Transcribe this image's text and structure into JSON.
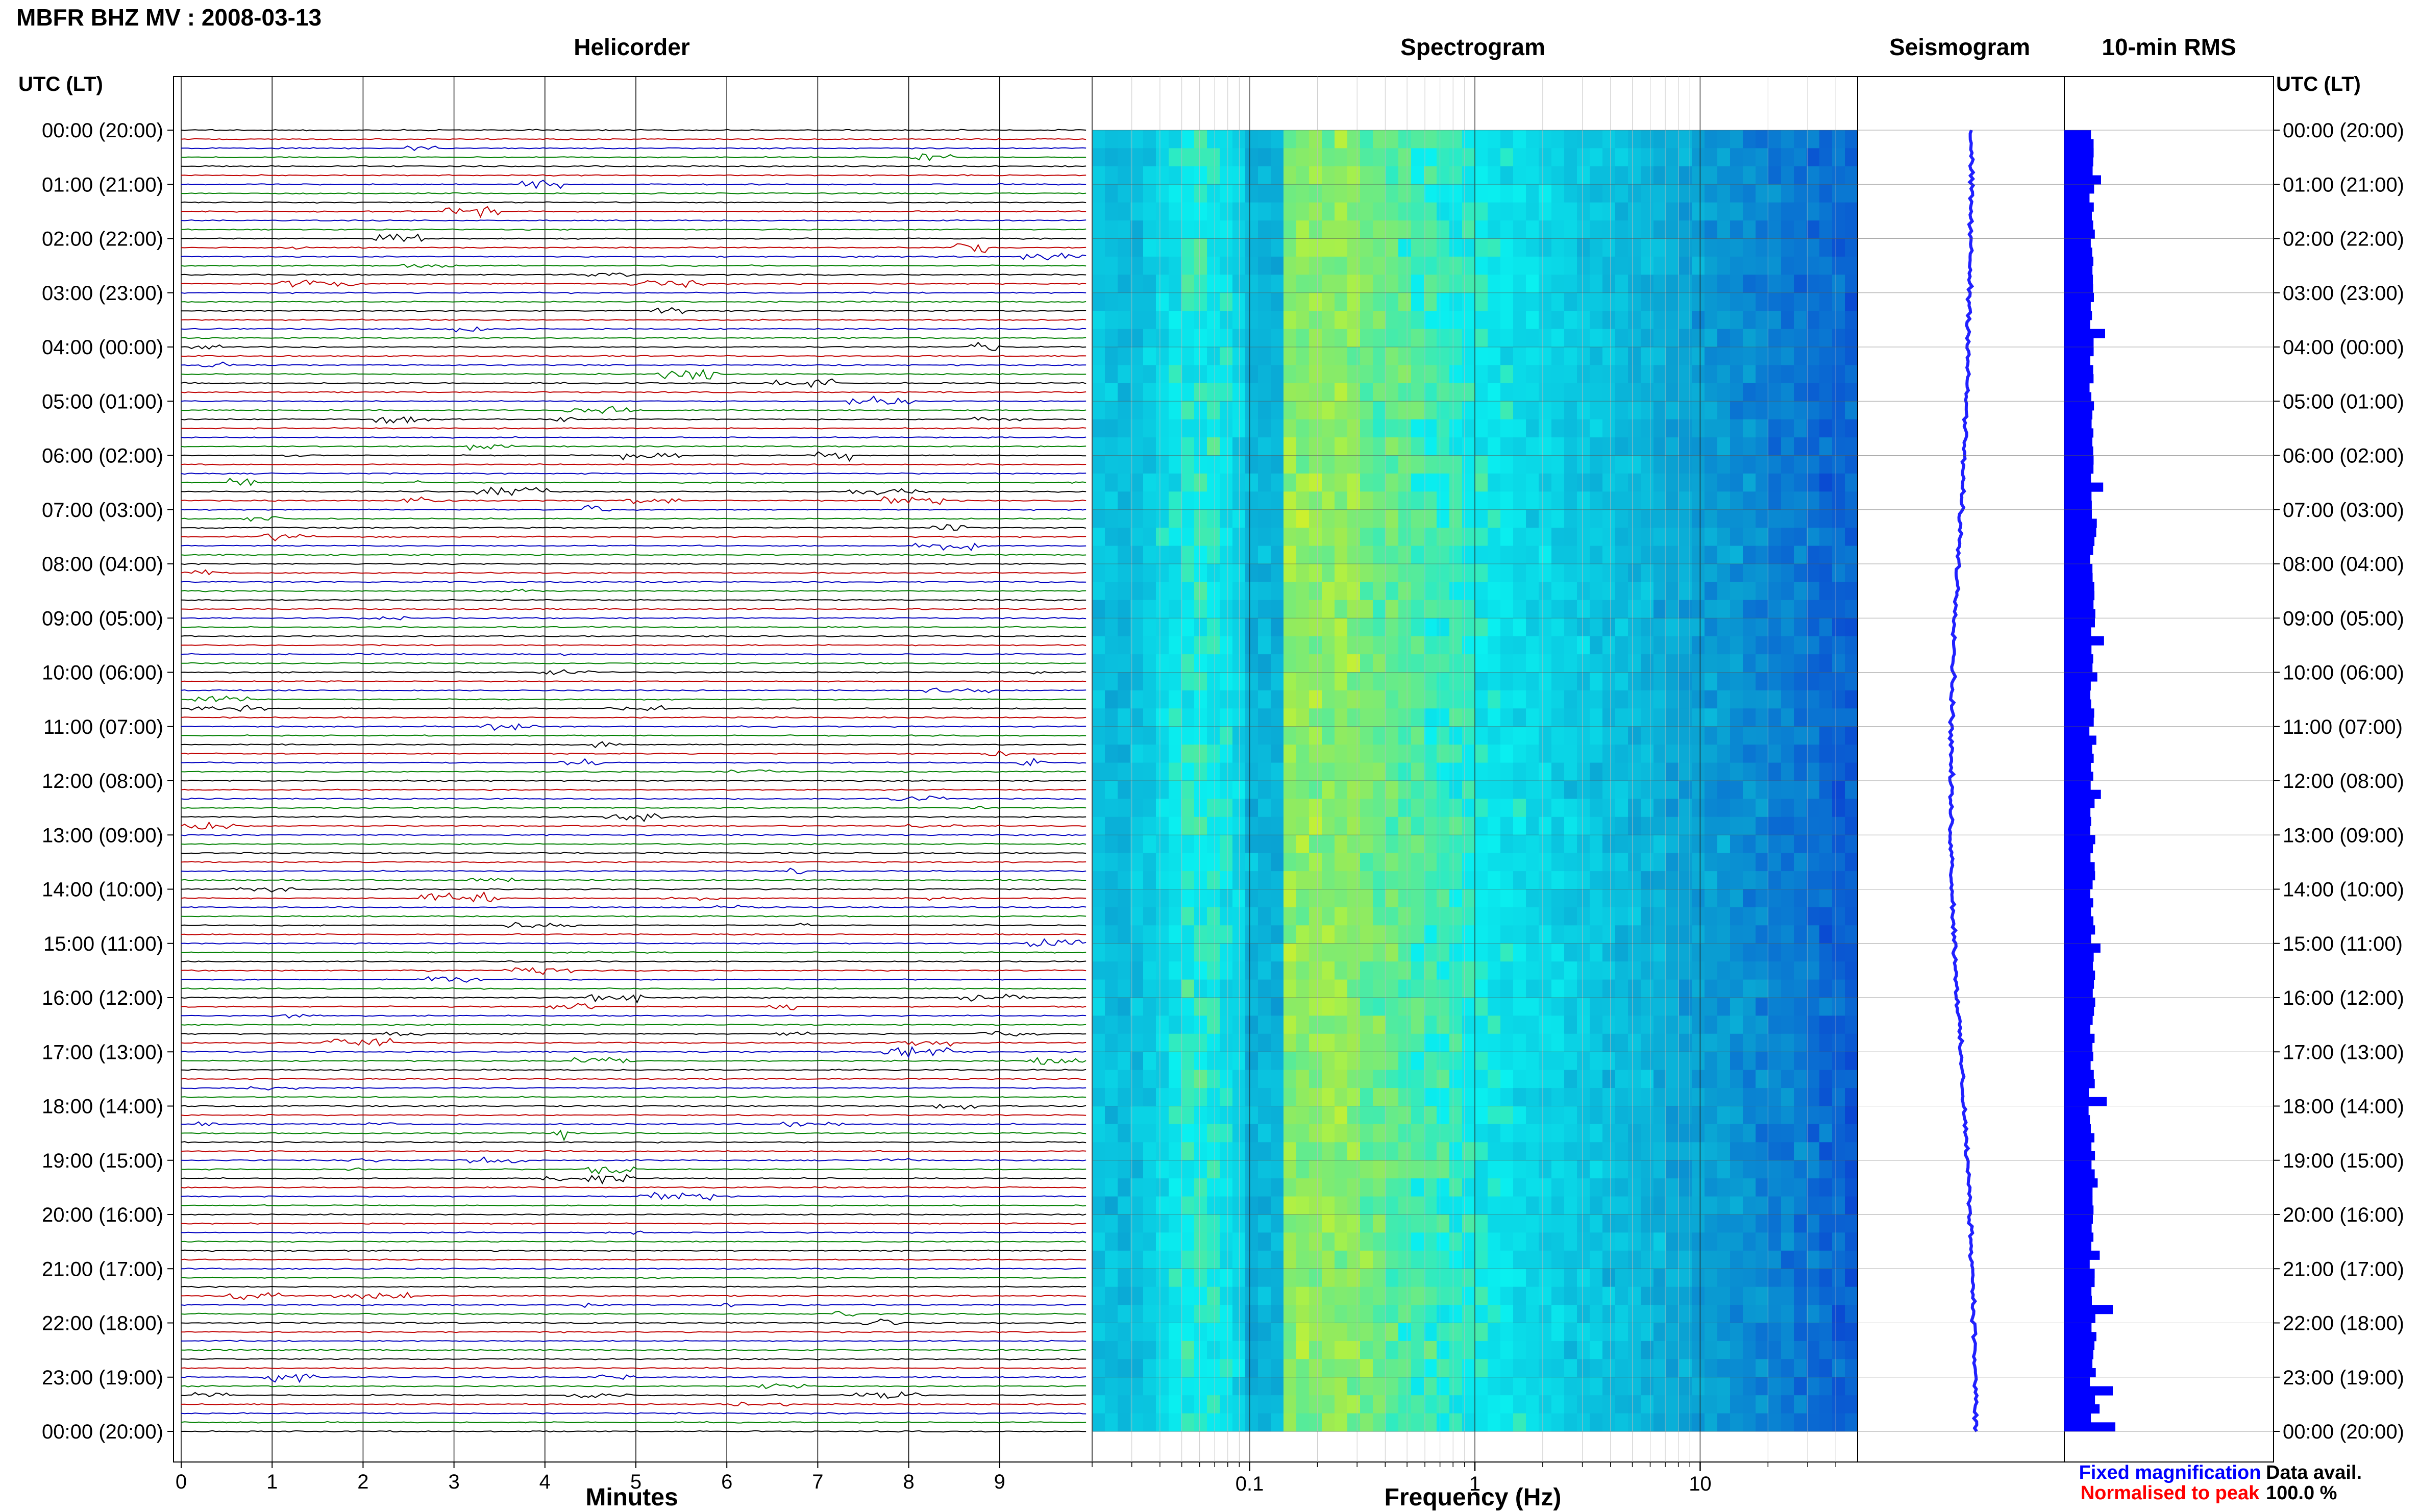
{
  "title": "MBFR BHZ MV : 2008-03-13",
  "time_axis_label": "UTC (LT)",
  "panels": {
    "helicorder": "Helicorder",
    "spectrogram": "Spectrogram",
    "seismogram": "Seismogram",
    "rms": "10-min RMS"
  },
  "time_ticks": [
    "00:00 (20:00)",
    "01:00 (21:00)",
    "02:00 (22:00)",
    "03:00 (23:00)",
    "04:00 (00:00)",
    "05:00 (01:00)",
    "06:00 (02:00)",
    "07:00 (03:00)",
    "08:00 (04:00)",
    "09:00 (05:00)",
    "10:00 (06:00)",
    "11:00 (07:00)",
    "12:00 (08:00)",
    "13:00 (09:00)",
    "14:00 (10:00)",
    "15:00 (11:00)",
    "16:00 (12:00)",
    "17:00 (13:00)",
    "18:00 (14:00)",
    "19:00 (15:00)",
    "20:00 (16:00)",
    "21:00 (17:00)",
    "22:00 (18:00)",
    "23:00 (19:00)",
    "00:00 (20:00)"
  ],
  "helicorder_xaxis": {
    "label": "Minutes",
    "ticks": [
      "0",
      "1",
      "2",
      "3",
      "4",
      "5",
      "6",
      "7",
      "8",
      "9"
    ]
  },
  "spectrogram_xaxis": {
    "label": "Frequency (Hz)",
    "ticks": [
      "0.1",
      "1",
      "10"
    ],
    "scale": "log"
  },
  "legend": {
    "fixed": "Fixed magnification",
    "normalised": "Normalised to peak",
    "fixed_color": "#0000ff",
    "normalised_color": "#ff0000"
  },
  "availability": {
    "label": "Data avail.",
    "value": "100.0 %"
  },
  "colors": {
    "trace_cycle": [
      "#000000",
      "#c00000",
      "#0000c0",
      "#008000"
    ],
    "seismogram": "#2020ff",
    "rms_bar": "#0000ff"
  },
  "chart_data": [
    {
      "type": "line",
      "name": "helicorder",
      "x_unit": "minutes",
      "xlim": [
        0,
        10
      ],
      "y_time_range": [
        "00:00",
        "24:00"
      ],
      "rows": 144,
      "row_interval_minutes": 10,
      "grid": true
    },
    {
      "type": "heatmap",
      "name": "spectrogram",
      "x_scale": "log",
      "xlim_hz": [
        0.02,
        50
      ],
      "y_time_range": [
        "00:00",
        "24:00"
      ],
      "peak_band_hz": [
        0.15,
        0.3
      ],
      "grid": true
    },
    {
      "type": "line",
      "name": "seismogram",
      "description_axis": "time vertical",
      "y_time_range": [
        "00:00",
        "24:00"
      ],
      "grid": true
    },
    {
      "type": "bar",
      "name": "10-min RMS",
      "orientation": "horizontal",
      "bin_minutes": 10,
      "grid": true
    }
  ]
}
